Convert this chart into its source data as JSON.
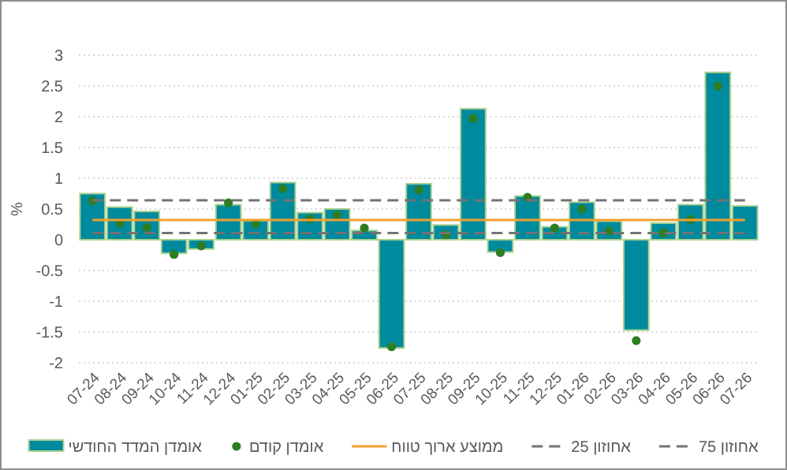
{
  "chart_data": {
    "type": "bar",
    "categories": [
      "07-24",
      "08-24",
      "09-24",
      "10-24",
      "11-24",
      "12-24",
      "01-25",
      "02-25",
      "03-25",
      "04-25",
      "05-25",
      "06-25",
      "07-25",
      "08-25",
      "09-25",
      "10-25",
      "11-25",
      "12-25",
      "01-26",
      "02-26",
      "03-26",
      "04-26",
      "05-26",
      "06-26",
      "07-26"
    ],
    "ylabel": "%",
    "ylim": [
      -2,
      3
    ],
    "yticks": [
      -2,
      -1.5,
      -1,
      -0.5,
      0,
      0.5,
      1,
      1.5,
      2,
      2.5,
      3
    ],
    "grid": "y",
    "legend": "bottom",
    "series": [
      {
        "name": "אומדן המדד החודשי",
        "color": "#008a9e",
        "values": [
          0.75,
          0.53,
          0.46,
          -0.22,
          -0.15,
          0.57,
          0.31,
          0.93,
          0.44,
          0.5,
          0.15,
          -1.76,
          0.91,
          0.24,
          2.13,
          -0.2,
          0.71,
          0.21,
          0.61,
          0.3,
          -1.47,
          0.27,
          0.57,
          2.72,
          0.55
        ]
      },
      {
        "name": "אומדן קודם",
        "type": "scatter",
        "marker": "circle",
        "color": "#2e7d23",
        "values": [
          0.63,
          0.27,
          0.2,
          -0.24,
          -0.1,
          0.6,
          0.26,
          0.83,
          0.34,
          0.4,
          0.19,
          -1.74,
          0.81,
          0.08,
          1.97,
          -0.21,
          0.69,
          0.19,
          0.5,
          0.14,
          -1.64,
          0.11,
          0.33,
          2.5,
          null
        ]
      },
      {
        "name": "ממוצע ארוך טווח",
        "type": "line",
        "line_style": "solid",
        "color": "#f0a030",
        "values": [
          0.32,
          0.32,
          0.32,
          0.32,
          0.32,
          0.32,
          0.32,
          0.32,
          0.32,
          0.32,
          0.32,
          0.32,
          0.32,
          0.32,
          0.32,
          0.32,
          0.32,
          0.32,
          0.32,
          0.32,
          0.32,
          0.32,
          0.32,
          0.32,
          0.32
        ]
      },
      {
        "name": "אחוזון 25",
        "type": "line",
        "line_style": "dashed",
        "color": "#737373",
        "values": [
          0.11,
          0.11,
          0.11,
          0.11,
          0.11,
          0.11,
          0.11,
          0.11,
          0.11,
          0.11,
          0.11,
          0.11,
          0.11,
          0.11,
          0.11,
          0.11,
          0.11,
          0.11,
          0.11,
          0.11,
          0.11,
          0.11,
          0.11,
          0.11,
          0.11
        ]
      },
      {
        "name": "אחוזון 75",
        "type": "line",
        "line_style": "dashed",
        "color": "#737373",
        "values": [
          0.64,
          0.64,
          0.64,
          0.64,
          0.64,
          0.64,
          0.64,
          0.64,
          0.64,
          0.64,
          0.64,
          0.64,
          0.64,
          0.64,
          0.64,
          0.64,
          0.64,
          0.64,
          0.64,
          0.64,
          0.64,
          0.64,
          0.64,
          0.64,
          0.64
        ]
      }
    ]
  }
}
